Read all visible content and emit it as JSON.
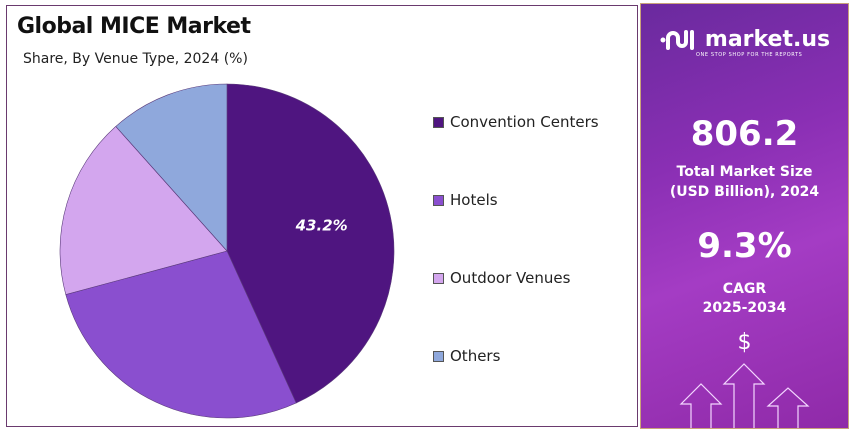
{
  "chart_data": {
    "type": "pie",
    "title": "Global MICE Market",
    "subtitle": "Share, By Venue Type, 2024 (%)",
    "categories": [
      "Convention Centers",
      "Hotels",
      "Outdoor Venues",
      "Others"
    ],
    "values": [
      43.2,
      27.6,
      17.6,
      11.6
    ],
    "colors": [
      "#4f1580",
      "#8a4fcf",
      "#d3a6ee",
      "#8fa8dc"
    ],
    "data_labels": [
      "43.2%",
      "",
      "",
      ""
    ],
    "legend_placement": "right"
  },
  "panel": {
    "brand": "market.us",
    "tagline": "ONE STOP SHOP FOR THE REPORTS",
    "market_size": "806.2",
    "market_size_label_1": "Total Market Size",
    "market_size_label_2": "(USD Billion), 2024",
    "cagr": "9.3%",
    "cagr_label_1": "CAGR",
    "cagr_label_2": "2025-2034",
    "dollar": "$"
  }
}
